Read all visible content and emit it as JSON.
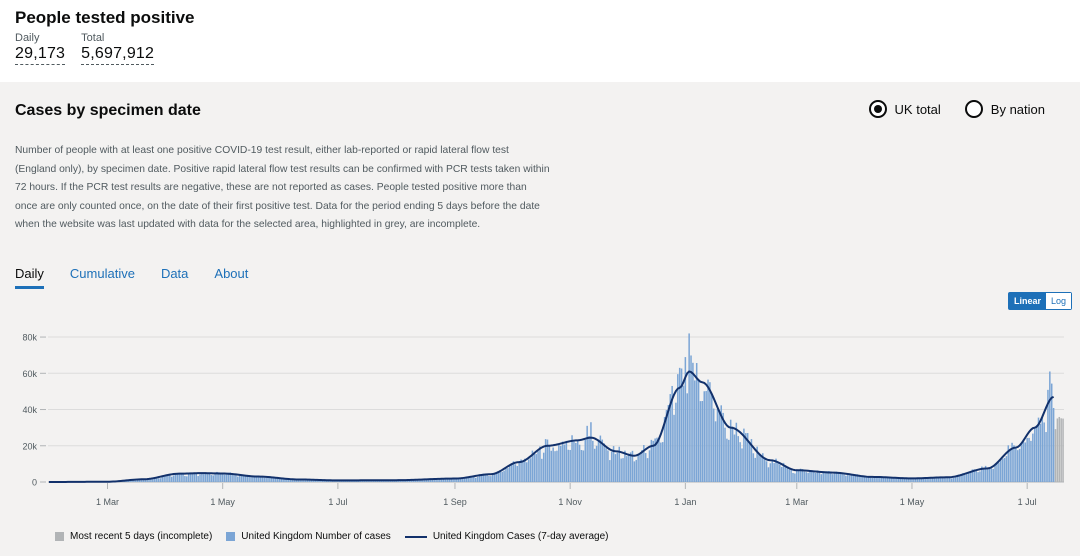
{
  "header": {
    "title": "People tested positive",
    "metrics": [
      {
        "label": "Daily",
        "value": "29,173"
      },
      {
        "label": "Total",
        "value": "5,697,912"
      }
    ]
  },
  "panel": {
    "title": "Cases by specimen date",
    "radios": [
      {
        "label": "UK total",
        "selected": true
      },
      {
        "label": "By nation",
        "selected": false
      }
    ],
    "description": "Number of people with at least one positive COVID-19 test result, either lab-reported or rapid lateral flow test (England only), by specimen date. Positive rapid lateral flow test results can be confirmed with PCR tests taken within 72 hours. If the PCR test results are negative, these are not reported as cases. People tested positive more than once are only counted once, on the date of their first positive test. Data for the period ending 5 days before the date when the website was last updated with data for the selected area, highlighted in grey, are incomplete.",
    "tabs": [
      "Daily",
      "Cumulative",
      "Data",
      "About"
    ],
    "active_tab": "Daily",
    "scale": {
      "linear": "Linear",
      "log": "Log",
      "selected": "Linear"
    }
  },
  "colors": {
    "bar": "#7ba5d5",
    "bar_incomplete": "#b1b4b6",
    "line": "#12316b",
    "grid": "#dcdcdc",
    "accent": "#1d70b8"
  },
  "chart_data": {
    "type": "bar",
    "title": "",
    "x_start_date": "2020-01-30",
    "x_end_date": "2021-07-20",
    "x_ticks": [
      {
        "date": "2020-03-01",
        "label": "1 Mar"
      },
      {
        "date": "2020-05-01",
        "label": "1 May"
      },
      {
        "date": "2020-07-01",
        "label": "1 Jul"
      },
      {
        "date": "2020-09-01",
        "label": "1 Sep"
      },
      {
        "date": "2020-11-01",
        "label": "1 Nov"
      },
      {
        "date": "2021-01-01",
        "label": "1 Jan"
      },
      {
        "date": "2021-03-01",
        "label": "1 Mar"
      },
      {
        "date": "2021-05-01",
        "label": "1 May"
      },
      {
        "date": "2021-07-01",
        "label": "1 Jul"
      }
    ],
    "y_ticks": [
      {
        "value": 0,
        "label": "0"
      },
      {
        "value": 20000,
        "label": "20k"
      },
      {
        "value": 40000,
        "label": "40k"
      },
      {
        "value": 60000,
        "label": "60k"
      },
      {
        "value": 80000,
        "label": "80k"
      }
    ],
    "ylim": [
      0,
      85000
    ],
    "incomplete_days": 5,
    "series": [
      {
        "name": "United Kingdom Number of cases",
        "kind": "bar"
      },
      {
        "name": "United Kingdom Cases (7-day average)",
        "kind": "line"
      }
    ],
    "legend_labels": [
      "Most recent 5 days (incomplete)",
      "United Kingdom Number of cases",
      "United Kingdom Cases (7-day average)"
    ],
    "average_anchors": [
      {
        "date": "2020-01-30",
        "value": 0
      },
      {
        "date": "2020-03-01",
        "value": 150
      },
      {
        "date": "2020-03-20",
        "value": 1500
      },
      {
        "date": "2020-04-08",
        "value": 4600
      },
      {
        "date": "2020-04-20",
        "value": 4900
      },
      {
        "date": "2020-05-01",
        "value": 4700
      },
      {
        "date": "2020-05-20",
        "value": 3000
      },
      {
        "date": "2020-06-10",
        "value": 1400
      },
      {
        "date": "2020-07-01",
        "value": 900
      },
      {
        "date": "2020-08-01",
        "value": 1000
      },
      {
        "date": "2020-09-01",
        "value": 1900
      },
      {
        "date": "2020-09-20",
        "value": 4300
      },
      {
        "date": "2020-10-05",
        "value": 11000
      },
      {
        "date": "2020-10-20",
        "value": 20000
      },
      {
        "date": "2020-11-05",
        "value": 23000
      },
      {
        "date": "2020-11-12",
        "value": 24500
      },
      {
        "date": "2020-11-25",
        "value": 17000
      },
      {
        "date": "2020-12-05",
        "value": 14500
      },
      {
        "date": "2020-12-15",
        "value": 20000
      },
      {
        "date": "2020-12-29",
        "value": 52000
      },
      {
        "date": "2021-01-03",
        "value": 61000
      },
      {
        "date": "2021-01-10",
        "value": 55000
      },
      {
        "date": "2021-01-25",
        "value": 30000
      },
      {
        "date": "2021-02-15",
        "value": 12000
      },
      {
        "date": "2021-03-01",
        "value": 6500
      },
      {
        "date": "2021-03-20",
        "value": 5200
      },
      {
        "date": "2021-04-10",
        "value": 2800
      },
      {
        "date": "2021-05-01",
        "value": 2000
      },
      {
        "date": "2021-05-20",
        "value": 2600
      },
      {
        "date": "2021-06-10",
        "value": 7500
      },
      {
        "date": "2021-06-25",
        "value": 19000
      },
      {
        "date": "2021-07-05",
        "value": 30000
      },
      {
        "date": "2021-07-15",
        "value": 47000
      }
    ],
    "daily_cases": [
      {
        "date": "2020-11-10",
        "value": 31000
      },
      {
        "date": "2020-11-12",
        "value": 33000
      },
      {
        "date": "2020-12-29",
        "value": 63000
      },
      {
        "date": "2021-01-03",
        "value": 82000
      },
      {
        "date": "2021-07-13",
        "value": 61000
      },
      {
        "date": "2021-07-16",
        "value": 29173
      }
    ]
  }
}
